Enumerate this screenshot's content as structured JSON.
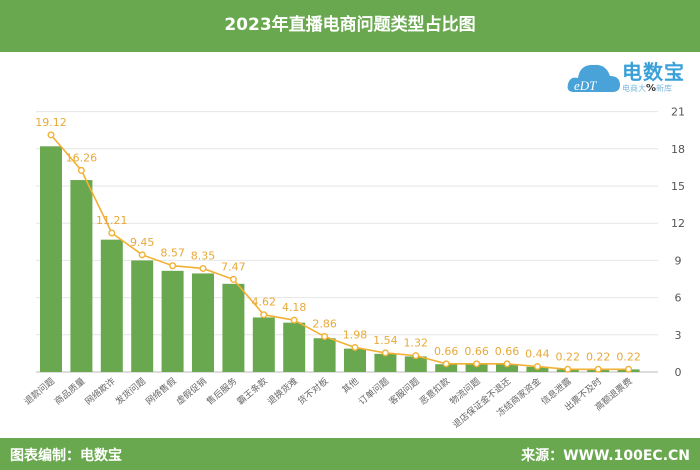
{
  "header": {
    "title": "2023年直播电商问题类型占比图"
  },
  "logo": {
    "mark": "eDT",
    "name": "电数宝",
    "tagline_left": "电商大",
    "tagline_pct": "%",
    "tagline_right": "新库"
  },
  "footer": {
    "left": "图表编制：电数宝",
    "right": "来源：WWW.100EC.CN"
  },
  "chart_data": {
    "type": "bar",
    "title": "2023年直播电商问题类型占比图",
    "categories": [
      "退款问题",
      "商品质量",
      "网络欺诈",
      "发货问题",
      "网络售假",
      "虚假促销",
      "售后服务",
      "霸王条款",
      "退换货难",
      "货不对板",
      "其他",
      "订单问题",
      "客服问题",
      "恶意扣款",
      "物流问题",
      "退店保证金不退还",
      "冻结商家资金",
      "信息泄露",
      "出票不及时",
      "高额退票费"
    ],
    "values": [
      19.12,
      16.26,
      11.21,
      9.45,
      8.57,
      8.35,
      7.47,
      4.62,
      4.18,
      2.86,
      1.98,
      1.54,
      1.32,
      0.66,
      0.66,
      0.66,
      0.44,
      0.22,
      0.22,
      0.22
    ],
    "overlay": "line with markers and data labels",
    "y_axis": {
      "position": "right",
      "ylim": [
        0,
        21
      ],
      "ticks": [
        0,
        3,
        6,
        9,
        12,
        15,
        18,
        21
      ]
    },
    "grid": true,
    "colors": {
      "bar": "#6aa84f",
      "line": "#f2b134",
      "label": "#e8a93a",
      "header": "#6aa84f"
    }
  }
}
